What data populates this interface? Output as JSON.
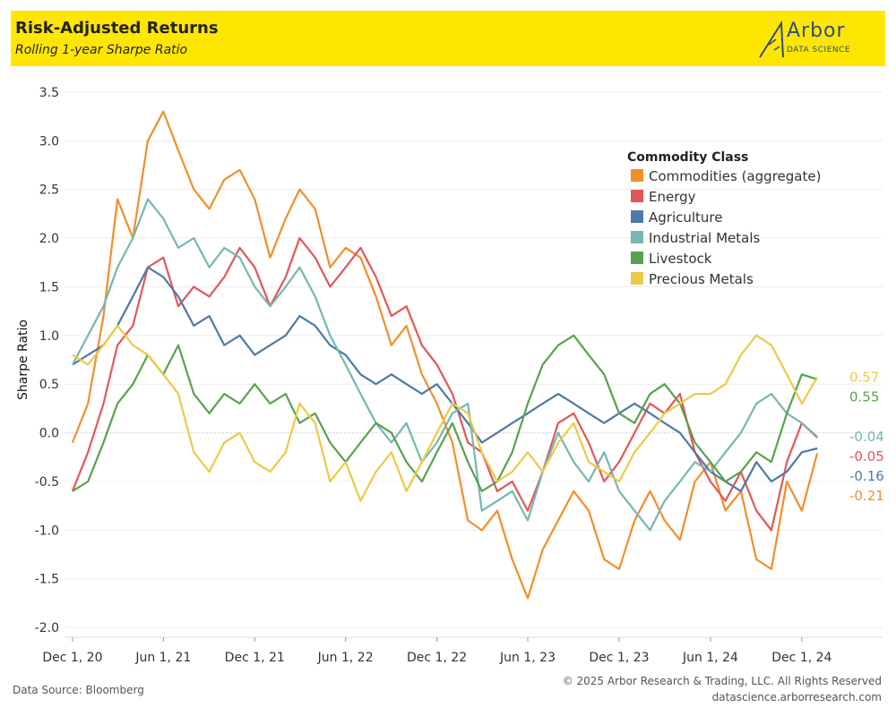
{
  "header": {
    "title": "Risk-Adjusted Returns",
    "subtitle": "Rolling 1-year Sharpe Ratio",
    "logo_word": "Arbor",
    "logo_sub": "DATA SCIENCE"
  },
  "footer": {
    "source": "Data Source: Bloomberg",
    "copyright": "© 2025 Arbor Research & Trading, LLC. All Rights Reserved",
    "website": "datascience.arborresearch.com"
  },
  "chart_data": {
    "type": "line",
    "ylabel": "Sharpe Ratio",
    "ylim": [
      -2.1,
      3.6
    ],
    "xlim": [
      "2020-11-15",
      "2025-02-20"
    ],
    "yticks": [
      -2.0,
      -1.5,
      -1.0,
      -0.5,
      0.0,
      0.5,
      1.0,
      1.5,
      2.0,
      2.5,
      3.0,
      3.5
    ],
    "ytick_labels": [
      "-2.0",
      "-1.5",
      "-1.0",
      "-0.5",
      "0.0",
      "0.5",
      "1.0",
      "1.5",
      "2.0",
      "2.5",
      "3.0",
      "3.5"
    ],
    "xticks": [
      "2020-12-01",
      "2021-06-01",
      "2021-12-01",
      "2022-06-01",
      "2022-12-01",
      "2023-06-01",
      "2023-12-01",
      "2024-06-01",
      "2024-12-01"
    ],
    "xtick_labels": [
      "Dec 1, 20",
      "Jun 1, 21",
      "Dec 1, 21",
      "Jun 1, 22",
      "Dec 1, 22",
      "Jun 1, 23",
      "Dec 1, 23",
      "Jun 1, 24",
      "Dec 1, 24"
    ],
    "grid": true,
    "legend": {
      "title": "Commodity Class",
      "placement": "top-right"
    },
    "series": [
      {
        "name": "Commodities (aggregate)",
        "color": "#f28e2b",
        "end_label": "-0.21",
        "x": [
          "2020-12-01",
          "2021-01-01",
          "2021-02-01",
          "2021-03-01",
          "2021-04-01",
          "2021-05-01",
          "2021-06-01",
          "2021-07-01",
          "2021-08-01",
          "2021-09-01",
          "2021-10-01",
          "2021-11-01",
          "2021-12-01",
          "2022-01-01",
          "2022-02-01",
          "2022-03-01",
          "2022-04-01",
          "2022-05-01",
          "2022-06-01",
          "2022-07-01",
          "2022-08-01",
          "2022-09-01",
          "2022-10-01",
          "2022-11-01",
          "2022-12-01",
          "2023-01-01",
          "2023-02-01",
          "2023-03-01",
          "2023-04-01",
          "2023-05-01",
          "2023-06-01",
          "2023-07-01",
          "2023-08-01",
          "2023-09-01",
          "2023-10-01",
          "2023-11-01",
          "2023-12-01",
          "2024-01-01",
          "2024-02-01",
          "2024-03-01",
          "2024-04-01",
          "2024-05-01",
          "2024-06-01",
          "2024-07-01",
          "2024-08-01",
          "2024-09-01",
          "2024-10-01",
          "2024-11-01",
          "2024-12-01",
          "2025-01-01"
        ],
        "y": [
          -0.1,
          0.3,
          1.2,
          2.4,
          2.0,
          3.0,
          3.3,
          2.9,
          2.5,
          2.3,
          2.6,
          2.7,
          2.4,
          1.8,
          2.2,
          2.5,
          2.3,
          1.7,
          1.9,
          1.8,
          1.4,
          0.9,
          1.1,
          0.6,
          0.3,
          -0.1,
          -0.9,
          -1.0,
          -0.8,
          -1.3,
          -1.7,
          -1.2,
          -0.9,
          -0.6,
          -0.8,
          -1.3,
          -1.4,
          -0.9,
          -0.6,
          -0.9,
          -1.1,
          -0.5,
          -0.3,
          -0.8,
          -0.6,
          -1.3,
          -1.4,
          -0.5,
          -0.8,
          -0.21
        ]
      },
      {
        "name": "Energy",
        "color": "#e15759",
        "end_label": "-0.05",
        "x": [
          "2020-12-01",
          "2021-01-01",
          "2021-02-01",
          "2021-03-01",
          "2021-04-01",
          "2021-05-01",
          "2021-06-01",
          "2021-07-01",
          "2021-08-01",
          "2021-09-01",
          "2021-10-01",
          "2021-11-01",
          "2021-12-01",
          "2022-01-01",
          "2022-02-01",
          "2022-03-01",
          "2022-04-01",
          "2022-05-01",
          "2022-06-01",
          "2022-07-01",
          "2022-08-01",
          "2022-09-01",
          "2022-10-01",
          "2022-11-01",
          "2022-12-01",
          "2023-01-01",
          "2023-02-01",
          "2023-03-01",
          "2023-04-01",
          "2023-05-01",
          "2023-06-01",
          "2023-07-01",
          "2023-08-01",
          "2023-09-01",
          "2023-10-01",
          "2023-11-01",
          "2023-12-01",
          "2024-01-01",
          "2024-02-01",
          "2024-03-01",
          "2024-04-01",
          "2024-05-01",
          "2024-06-01",
          "2024-07-01",
          "2024-08-01",
          "2024-09-01",
          "2024-10-01",
          "2024-11-01",
          "2024-12-01",
          "2025-01-01"
        ],
        "y": [
          -0.6,
          -0.2,
          0.3,
          0.9,
          1.1,
          1.7,
          1.8,
          1.3,
          1.5,
          1.4,
          1.6,
          1.9,
          1.7,
          1.3,
          1.6,
          2.0,
          1.8,
          1.5,
          1.7,
          1.9,
          1.6,
          1.2,
          1.3,
          0.9,
          0.7,
          0.4,
          -0.1,
          -0.2,
          -0.6,
          -0.5,
          -0.8,
          -0.4,
          0.1,
          0.2,
          -0.1,
          -0.5,
          -0.3,
          0.0,
          0.3,
          0.2,
          0.4,
          -0.2,
          -0.5,
          -0.7,
          -0.4,
          -0.8,
          -1.0,
          -0.3,
          0.1,
          -0.05
        ]
      },
      {
        "name": "Agriculture",
        "color": "#4e79a7",
        "end_label": "-0.16",
        "x": [
          "2020-12-01",
          "2021-01-01",
          "2021-02-01",
          "2021-03-01",
          "2021-04-01",
          "2021-05-01",
          "2021-06-01",
          "2021-07-01",
          "2021-08-01",
          "2021-09-01",
          "2021-10-01",
          "2021-11-01",
          "2021-12-01",
          "2022-01-01",
          "2022-02-01",
          "2022-03-01",
          "2022-04-01",
          "2022-05-01",
          "2022-06-01",
          "2022-07-01",
          "2022-08-01",
          "2022-09-01",
          "2022-10-01",
          "2022-11-01",
          "2022-12-01",
          "2023-01-01",
          "2023-02-01",
          "2023-03-01",
          "2023-04-01",
          "2023-05-01",
          "2023-06-01",
          "2023-07-01",
          "2023-08-01",
          "2023-09-01",
          "2023-10-01",
          "2023-11-01",
          "2023-12-01",
          "2024-01-01",
          "2024-02-01",
          "2024-03-01",
          "2024-04-01",
          "2024-05-01",
          "2024-06-01",
          "2024-07-01",
          "2024-08-01",
          "2024-09-01",
          "2024-10-01",
          "2024-11-01",
          "2024-12-01",
          "2025-01-01"
        ],
        "y": [
          0.7,
          0.8,
          0.9,
          1.1,
          1.4,
          1.7,
          1.6,
          1.4,
          1.1,
          1.2,
          0.9,
          1.0,
          0.8,
          0.9,
          1.0,
          1.2,
          1.1,
          0.9,
          0.8,
          0.6,
          0.5,
          0.6,
          0.5,
          0.4,
          0.5,
          0.3,
          0.1,
          -0.1,
          0.0,
          0.1,
          0.2,
          0.3,
          0.4,
          0.3,
          0.2,
          0.1,
          0.2,
          0.3,
          0.2,
          0.1,
          0.0,
          -0.2,
          -0.4,
          -0.5,
          -0.6,
          -0.3,
          -0.5,
          -0.4,
          -0.2,
          -0.16
        ]
      },
      {
        "name": "Industrial Metals",
        "color": "#76b7b2",
        "end_label": "-0.04",
        "x": [
          "2020-12-01",
          "2021-01-01",
          "2021-02-01",
          "2021-03-01",
          "2021-04-01",
          "2021-05-01",
          "2021-06-01",
          "2021-07-01",
          "2021-08-01",
          "2021-09-01",
          "2021-10-01",
          "2021-11-01",
          "2021-12-01",
          "2022-01-01",
          "2022-02-01",
          "2022-03-01",
          "2022-04-01",
          "2022-05-01",
          "2022-06-01",
          "2022-07-01",
          "2022-08-01",
          "2022-09-01",
          "2022-10-01",
          "2022-11-01",
          "2022-12-01",
          "2023-01-01",
          "2023-02-01",
          "2023-03-01",
          "2023-04-01",
          "2023-05-01",
          "2023-06-01",
          "2023-07-01",
          "2023-08-01",
          "2023-09-01",
          "2023-10-01",
          "2023-11-01",
          "2023-12-01",
          "2024-01-01",
          "2024-02-01",
          "2024-03-01",
          "2024-04-01",
          "2024-05-01",
          "2024-06-01",
          "2024-07-01",
          "2024-08-01",
          "2024-09-01",
          "2024-10-01",
          "2024-11-01",
          "2024-12-01",
          "2025-01-01"
        ],
        "y": [
          0.7,
          1.0,
          1.3,
          1.7,
          2.0,
          2.4,
          2.2,
          1.9,
          2.0,
          1.7,
          1.9,
          1.8,
          1.5,
          1.3,
          1.5,
          1.7,
          1.4,
          1.0,
          0.7,
          0.4,
          0.1,
          -0.1,
          0.1,
          -0.3,
          -0.1,
          0.2,
          0.3,
          -0.8,
          -0.7,
          -0.6,
          -0.9,
          -0.4,
          0.0,
          -0.3,
          -0.5,
          -0.2,
          -0.6,
          -0.8,
          -1.0,
          -0.7,
          -0.5,
          -0.3,
          -0.4,
          -0.2,
          0.0,
          0.3,
          0.4,
          0.2,
          0.1,
          -0.04
        ]
      },
      {
        "name": "Livestock",
        "color": "#59a14f",
        "end_label": "0.55",
        "x": [
          "2020-12-01",
          "2021-01-01",
          "2021-02-01",
          "2021-03-01",
          "2021-04-01",
          "2021-05-01",
          "2021-06-01",
          "2021-07-01",
          "2021-08-01",
          "2021-09-01",
          "2021-10-01",
          "2021-11-01",
          "2021-12-01",
          "2022-01-01",
          "2022-02-01",
          "2022-03-01",
          "2022-04-01",
          "2022-05-01",
          "2022-06-01",
          "2022-07-01",
          "2022-08-01",
          "2022-09-01",
          "2022-10-01",
          "2022-11-01",
          "2022-12-01",
          "2023-01-01",
          "2023-02-01",
          "2023-03-01",
          "2023-04-01",
          "2023-05-01",
          "2023-06-01",
          "2023-07-01",
          "2023-08-01",
          "2023-09-01",
          "2023-10-01",
          "2023-11-01",
          "2023-12-01",
          "2024-01-01",
          "2024-02-01",
          "2024-03-01",
          "2024-04-01",
          "2024-05-01",
          "2024-06-01",
          "2024-07-01",
          "2024-08-01",
          "2024-09-01",
          "2024-10-01",
          "2024-11-01",
          "2024-12-01",
          "2025-01-01"
        ],
        "y": [
          -0.6,
          -0.5,
          -0.1,
          0.3,
          0.5,
          0.8,
          0.6,
          0.9,
          0.4,
          0.2,
          0.4,
          0.3,
          0.5,
          0.3,
          0.4,
          0.1,
          0.2,
          -0.1,
          -0.3,
          -0.1,
          0.1,
          0.0,
          -0.3,
          -0.5,
          -0.2,
          0.1,
          -0.3,
          -0.6,
          -0.5,
          -0.2,
          0.3,
          0.7,
          0.9,
          1.0,
          0.8,
          0.6,
          0.2,
          0.1,
          0.4,
          0.5,
          0.3,
          -0.1,
          -0.3,
          -0.5,
          -0.4,
          -0.2,
          -0.3,
          0.2,
          0.6,
          0.55
        ]
      },
      {
        "name": "Precious Metals",
        "color": "#edc948",
        "end_label": "0.57",
        "x": [
          "2020-12-01",
          "2021-01-01",
          "2021-02-01",
          "2021-03-01",
          "2021-04-01",
          "2021-05-01",
          "2021-06-01",
          "2021-07-01",
          "2021-08-01",
          "2021-09-01",
          "2021-10-01",
          "2021-11-01",
          "2021-12-01",
          "2022-01-01",
          "2022-02-01",
          "2022-03-01",
          "2022-04-01",
          "2022-05-01",
          "2022-06-01",
          "2022-07-01",
          "2022-08-01",
          "2022-09-01",
          "2022-10-01",
          "2022-11-01",
          "2022-12-01",
          "2023-01-01",
          "2023-02-01",
          "2023-03-01",
          "2023-04-01",
          "2023-05-01",
          "2023-06-01",
          "2023-07-01",
          "2023-08-01",
          "2023-09-01",
          "2023-10-01",
          "2023-11-01",
          "2023-12-01",
          "2024-01-01",
          "2024-02-01",
          "2024-03-01",
          "2024-04-01",
          "2024-05-01",
          "2024-06-01",
          "2024-07-01",
          "2024-08-01",
          "2024-09-01",
          "2024-10-01",
          "2024-11-01",
          "2024-12-01",
          "2025-01-01"
        ],
        "y": [
          0.8,
          0.7,
          0.9,
          1.1,
          0.9,
          0.8,
          0.6,
          0.4,
          -0.2,
          -0.4,
          -0.1,
          0.0,
          -0.3,
          -0.4,
          -0.2,
          0.3,
          0.1,
          -0.5,
          -0.3,
          -0.7,
          -0.4,
          -0.2,
          -0.6,
          -0.3,
          0.0,
          0.3,
          0.2,
          -0.2,
          -0.5,
          -0.4,
          -0.2,
          -0.4,
          -0.1,
          0.1,
          -0.3,
          -0.4,
          -0.5,
          -0.2,
          0.0,
          0.2,
          0.3,
          0.4,
          0.4,
          0.5,
          0.8,
          1.0,
          0.9,
          0.6,
          0.3,
          0.57
        ]
      }
    ]
  }
}
